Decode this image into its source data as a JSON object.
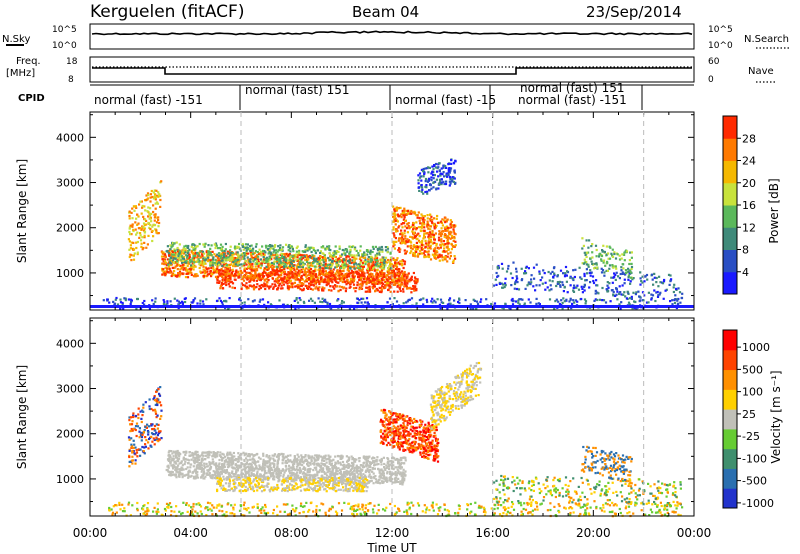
{
  "header": {
    "station": "Kerguelen (fitACF)",
    "beam": "Beam 04",
    "date": "23/Sep/2014"
  },
  "top_panels": {
    "nsky_label": "N.Sky",
    "nsky_ticks": [
      "10^5",
      "10^0"
    ],
    "nsearch_label": "N.Search",
    "nsearch_ticks": [
      "10^5",
      "10^0"
    ],
    "freq_label_1": "Freq.",
    "freq_label_2": "[MHz]",
    "freq_ticks": [
      "18",
      "8"
    ],
    "nave_label": "Nave",
    "nave_ticks": [
      "60",
      "0"
    ],
    "cpid_label": "CPID",
    "cpid_segments": [
      {
        "label": "normal (fast) -151",
        "start_hour": 0,
        "end_hour": 6
      },
      {
        "label": "normal (fast) 151",
        "start_hour": 6,
        "end_hour": 12
      },
      {
        "label": "normal (fast) -15",
        "start_hour": 12,
        "end_hour": 16.8
      },
      {
        "label": "normal (fast) 151",
        "start_hour": 16.8,
        "end_hour": 22
      },
      {
        "label": "normal (fast) -151",
        "start_hour": 17,
        "end_hour": 24
      }
    ]
  },
  "x_axis": {
    "ticks": [
      "00:00",
      "04:00",
      "08:00",
      "12:00",
      "16:00",
      "20:00",
      "00:00"
    ],
    "label": "Time UT"
  },
  "chart_data": [
    {
      "type": "heatmap",
      "ylabel": "Slant Range [km]",
      "ylim": [
        180,
        4560
      ],
      "yticks": [
        "1000",
        "2000",
        "3000",
        "4000"
      ],
      "colorbar_label": "Power [dB]",
      "colorbar_ticks": [
        "4",
        "8",
        "12",
        "16",
        "20",
        "24",
        "28"
      ],
      "colorbar_colors": [
        "#1a1aff",
        "#2a4fc4",
        "#3f8a7a",
        "#5bb85b",
        "#c8e23c",
        "#f5b800",
        "#ff7a00",
        "#ff2a00"
      ]
    },
    {
      "type": "heatmap",
      "ylabel": "Slant Range [km]",
      "ylim": [
        180,
        4560
      ],
      "yticks": [
        "1000",
        "2000",
        "3000",
        "4000"
      ],
      "colorbar_label": "Velocity [m s⁻¹]",
      "colorbar_ticks": [
        "1000",
        "500",
        "100",
        "25",
        "-25",
        "-100",
        "-500",
        "-1000"
      ],
      "colorbar_colors": [
        "#2233cc",
        "#2a6fb0",
        "#3f8f6e",
        "#66cc33",
        "#c0c0b8",
        "#ffd000",
        "#ff9000",
        "#ff4400",
        "#ff0000"
      ]
    }
  ]
}
